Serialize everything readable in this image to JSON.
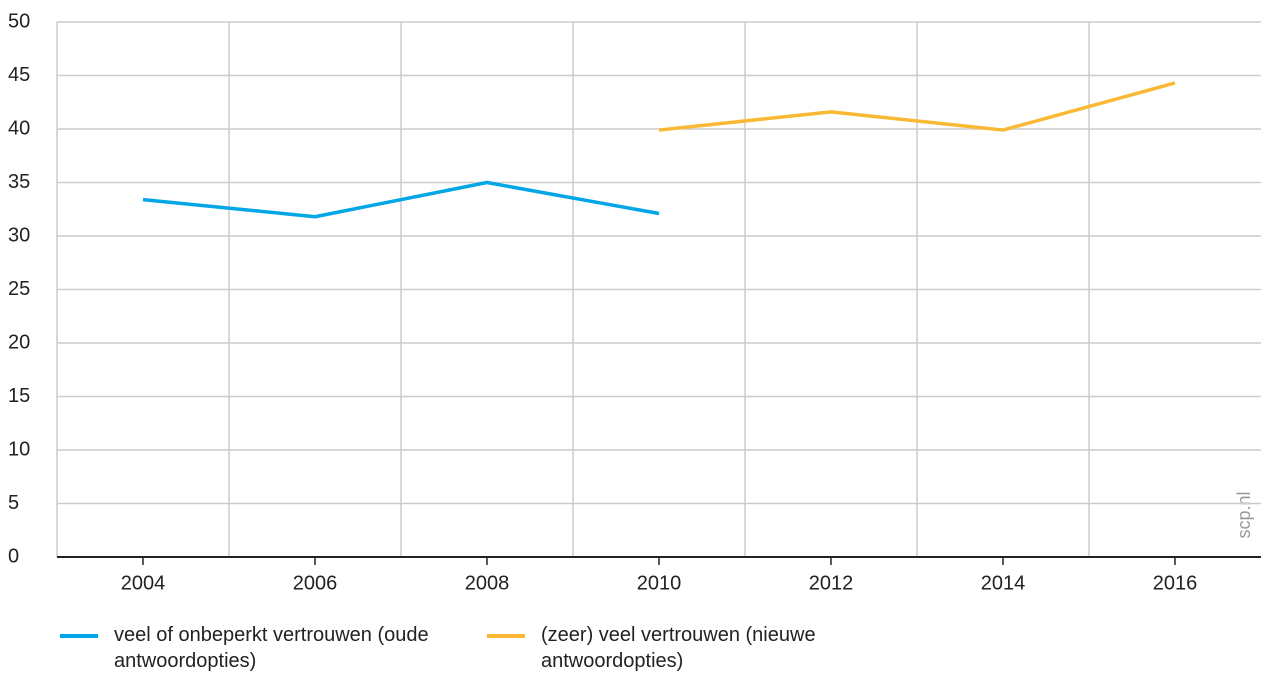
{
  "chart_data": {
    "type": "line",
    "x": [
      2004,
      2006,
      2008,
      2010,
      2012,
      2014,
      2016
    ],
    "series": [
      {
        "name": "veel of onbeperkt vertrouwen (oude antwoordopties)",
        "color": "#00a6e6",
        "values": [
          33.4,
          31.8,
          35.0,
          32.1,
          null,
          null,
          null
        ]
      },
      {
        "name": "(zeer) veel vertrouwen (nieuwe antwoordopties)",
        "color": "#f9b934",
        "values": [
          null,
          null,
          null,
          39.9,
          41.6,
          39.9,
          44.3
        ]
      }
    ],
    "xlim": [
      2003,
      2017
    ],
    "xticks": [
      2004,
      2006,
      2008,
      2010,
      2012,
      2014,
      2016
    ],
    "x_gridlines": [
      2005,
      2007,
      2009,
      2011,
      2013,
      2015
    ],
    "ylim": [
      0,
      50
    ],
    "yticks": [
      0,
      5,
      10,
      15,
      20,
      25,
      30,
      35,
      40,
      45,
      50
    ],
    "grid": true,
    "legend": "bottom",
    "watermark": "scp.nl"
  }
}
